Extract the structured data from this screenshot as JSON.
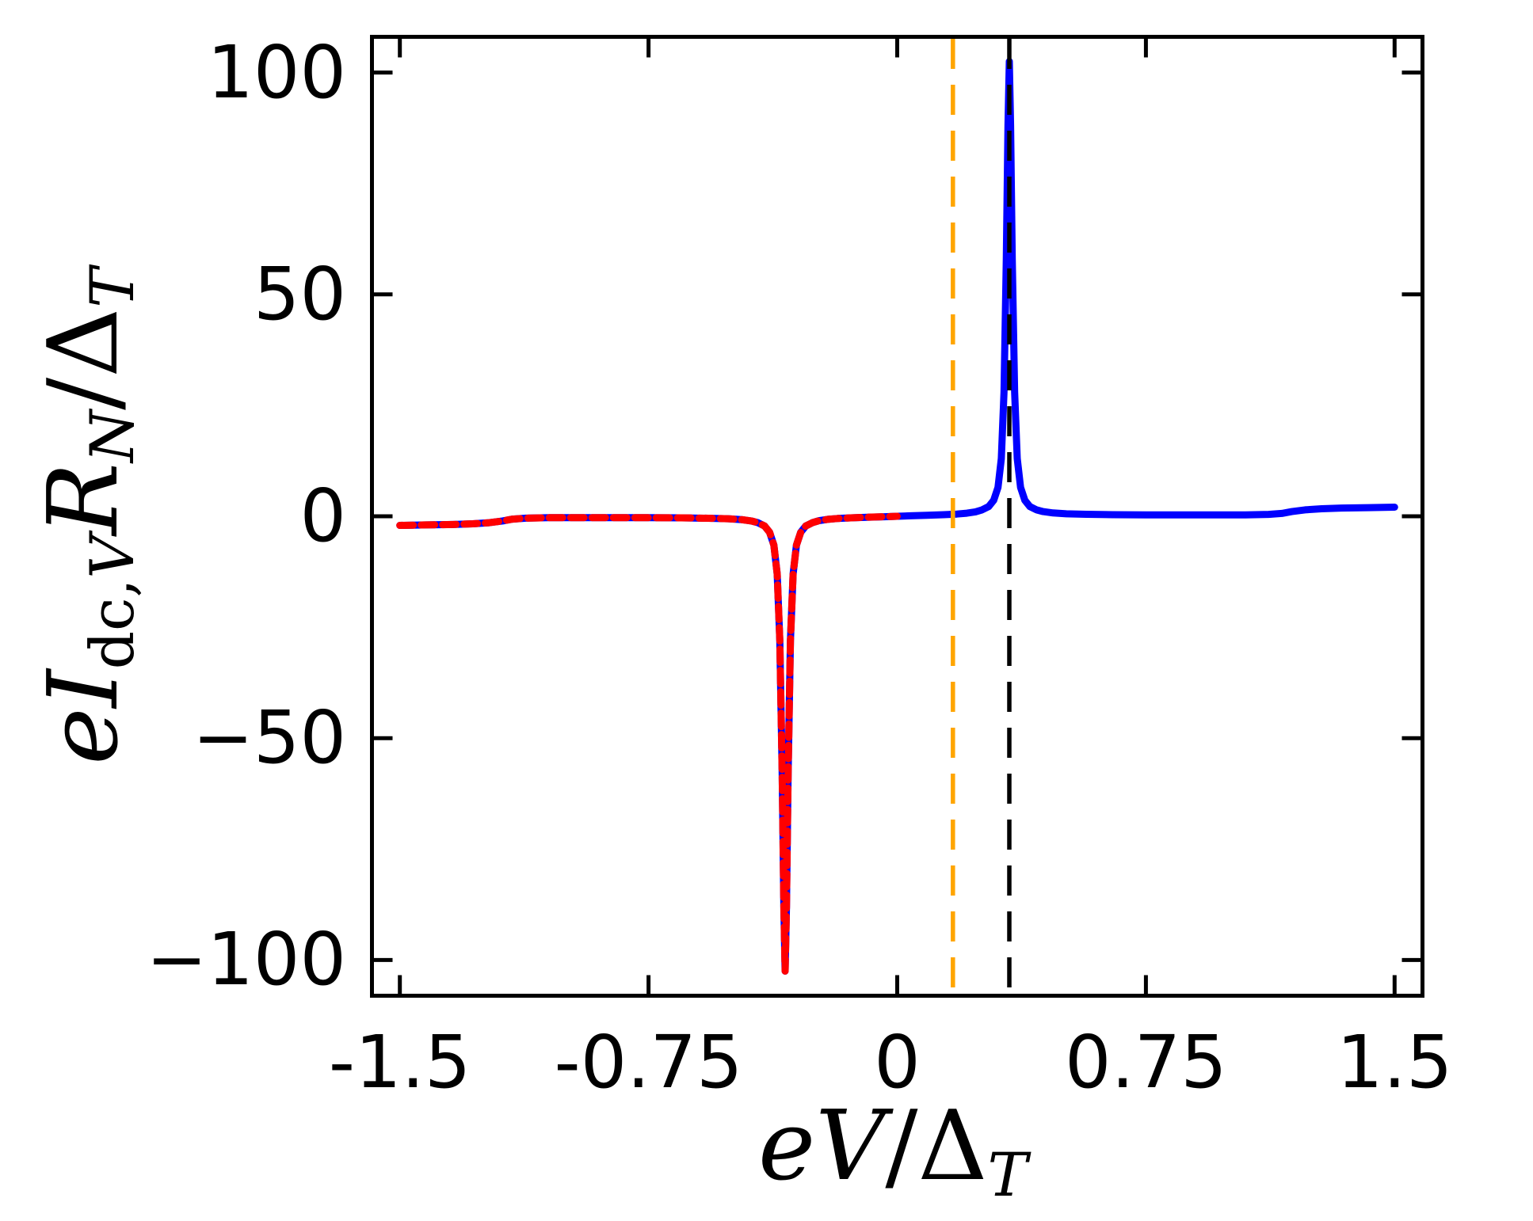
{
  "figure": {
    "background_color": "#ffffff",
    "frame_color": "#000000",
    "xlabel_plain": "eV/Δ_T",
    "ylabel_plain": "eI_dc,V R_N/Δ_T",
    "xlabel_segments": [
      {
        "text": "eV",
        "style": "it"
      },
      {
        "text": "/Δ",
        "style": "rm"
      },
      {
        "text": "T",
        "style": "subit"
      }
    ],
    "ylabel_segments": [
      {
        "text": "eI",
        "style": "it"
      },
      {
        "text": "dc,",
        "style": "sub"
      },
      {
        "text": "V",
        "style": "subit"
      },
      {
        "text": "R",
        "style": "it"
      },
      {
        "text": "N",
        "style": "subit"
      },
      {
        "text": "/Δ",
        "style": "rm"
      },
      {
        "text": "T",
        "style": "subit"
      }
    ]
  },
  "chart_data": {
    "type": "line",
    "title": "",
    "xlabel": "eV/Δ_T",
    "ylabel": "eI_dc,V R_N/Δ_T",
    "xlim": [
      -1.59,
      1.59
    ],
    "ylim": [
      -108.5,
      108.5
    ],
    "grid": false,
    "legend_position": "none",
    "x_ticks": {
      "values": [
        -1.5,
        -0.75,
        0,
        0.75,
        1.5
      ],
      "labels": [
        "-1.5",
        "-0.75",
        "0",
        "0.75",
        "1.5"
      ]
    },
    "y_ticks": {
      "values": [
        -100,
        -50,
        0,
        50,
        100
      ],
      "labels": [
        "−100",
        "−50",
        "0",
        "50",
        "100"
      ]
    },
    "series": [
      {
        "name": "blue_solid_curve",
        "color": "#0000ff",
        "line_style": "solid",
        "line_width": 9,
        "points": [
          [
            -1.5,
            -2.05
          ],
          [
            -1.42,
            -1.95
          ],
          [
            -1.34,
            -1.85
          ],
          [
            -1.28,
            -1.7
          ],
          [
            -1.23,
            -1.45
          ],
          [
            -1.19,
            -1.05
          ],
          [
            -1.16,
            -0.65
          ],
          [
            -1.12,
            -0.42
          ],
          [
            -1.05,
            -0.33
          ],
          [
            -0.95,
            -0.3
          ],
          [
            -0.85,
            -0.3
          ],
          [
            -0.75,
            -0.32
          ],
          [
            -0.65,
            -0.36
          ],
          [
            -0.57,
            -0.44
          ],
          [
            -0.51,
            -0.56
          ],
          [
            -0.47,
            -0.75
          ],
          [
            -0.44,
            -1.05
          ],
          [
            -0.42,
            -1.45
          ],
          [
            -0.4,
            -2.2
          ],
          [
            -0.385,
            -3.6
          ],
          [
            -0.372,
            -6.5
          ],
          [
            -0.362,
            -13
          ],
          [
            -0.354,
            -28
          ],
          [
            -0.347,
            -58
          ],
          [
            -0.342,
            -88
          ],
          [
            -0.338,
            -102.5
          ],
          [
            -0.334,
            -88
          ],
          [
            -0.329,
            -58
          ],
          [
            -0.322,
            -28
          ],
          [
            -0.314,
            -13
          ],
          [
            -0.304,
            -6.5
          ],
          [
            -0.291,
            -3.6
          ],
          [
            -0.276,
            -2.2
          ],
          [
            -0.256,
            -1.45
          ],
          [
            -0.236,
            -1.0
          ],
          [
            -0.21,
            -0.7
          ],
          [
            -0.18,
            -0.5
          ],
          [
            -0.14,
            -0.35
          ],
          [
            -0.09,
            -0.22
          ],
          [
            -0.04,
            -0.1
          ],
          [
            0,
            0
          ],
          [
            0.04,
            0.1
          ],
          [
            0.09,
            0.22
          ],
          [
            0.14,
            0.35
          ],
          [
            0.18,
            0.5
          ],
          [
            0.21,
            0.7
          ],
          [
            0.236,
            1.0
          ],
          [
            0.256,
            1.45
          ],
          [
            0.276,
            2.2
          ],
          [
            0.291,
            3.6
          ],
          [
            0.304,
            6.5
          ],
          [
            0.314,
            13
          ],
          [
            0.322,
            28
          ],
          [
            0.329,
            58
          ],
          [
            0.334,
            88
          ],
          [
            0.338,
            102.5
          ],
          [
            0.342,
            88
          ],
          [
            0.347,
            58
          ],
          [
            0.354,
            28
          ],
          [
            0.362,
            13
          ],
          [
            0.372,
            6.5
          ],
          [
            0.385,
            3.6
          ],
          [
            0.4,
            2.2
          ],
          [
            0.42,
            1.45
          ],
          [
            0.44,
            1.05
          ],
          [
            0.47,
            0.75
          ],
          [
            0.51,
            0.56
          ],
          [
            0.57,
            0.44
          ],
          [
            0.65,
            0.36
          ],
          [
            0.75,
            0.32
          ],
          [
            0.85,
            0.3
          ],
          [
            0.95,
            0.3
          ],
          [
            1.05,
            0.33
          ],
          [
            1.12,
            0.42
          ],
          [
            1.16,
            0.65
          ],
          [
            1.19,
            1.05
          ],
          [
            1.23,
            1.45
          ],
          [
            1.28,
            1.7
          ],
          [
            1.34,
            1.85
          ],
          [
            1.42,
            1.95
          ],
          [
            1.5,
            2.05
          ]
        ]
      },
      {
        "name": "red_dashed_curve",
        "color": "#ff0000",
        "line_style": "dashed",
        "dash_pattern": [
          17,
          10
        ],
        "line_width": 9,
        "points": [
          [
            -1.5,
            -2.05
          ],
          [
            -1.42,
            -1.95
          ],
          [
            -1.34,
            -1.85
          ],
          [
            -1.28,
            -1.7
          ],
          [
            -1.23,
            -1.45
          ],
          [
            -1.19,
            -1.05
          ],
          [
            -1.16,
            -0.65
          ],
          [
            -1.12,
            -0.42
          ],
          [
            -1.05,
            -0.33
          ],
          [
            -0.95,
            -0.3
          ],
          [
            -0.85,
            -0.3
          ],
          [
            -0.75,
            -0.32
          ],
          [
            -0.65,
            -0.36
          ],
          [
            -0.57,
            -0.44
          ],
          [
            -0.51,
            -0.56
          ],
          [
            -0.47,
            -0.75
          ],
          [
            -0.44,
            -1.05
          ],
          [
            -0.42,
            -1.45
          ],
          [
            -0.4,
            -2.2
          ],
          [
            -0.385,
            -3.6
          ],
          [
            -0.372,
            -6.5
          ],
          [
            -0.362,
            -13
          ],
          [
            -0.354,
            -28
          ],
          [
            -0.347,
            -58
          ],
          [
            -0.342,
            -88
          ],
          [
            -0.338,
            -102.5
          ],
          [
            -0.334,
            -88
          ],
          [
            -0.329,
            -58
          ],
          [
            -0.322,
            -28
          ],
          [
            -0.314,
            -13
          ],
          [
            -0.304,
            -6.5
          ],
          [
            -0.291,
            -3.6
          ],
          [
            -0.276,
            -2.2
          ],
          [
            -0.256,
            -1.45
          ],
          [
            -0.236,
            -1.0
          ],
          [
            -0.21,
            -0.7
          ],
          [
            -0.18,
            -0.5
          ],
          [
            -0.14,
            -0.35
          ],
          [
            -0.09,
            -0.22
          ],
          [
            -0.04,
            -0.1
          ],
          [
            0,
            0
          ]
        ]
      }
    ],
    "vlines": [
      {
        "name": "orange_dashed_vline",
        "x": 0.168,
        "color": "#ffa500",
        "line_style": "dashed",
        "dash_pattern": [
          38,
          20
        ],
        "line_width": 5.5
      },
      {
        "name": "black_dashed_vline",
        "x": 0.338,
        "color": "#000000",
        "line_style": "dashed",
        "dash_pattern": [
          38,
          20
        ],
        "line_width": 5.5
      }
    ],
    "annotations": {
      "negative_peak": {
        "x": -0.338,
        "y": -102.5
      },
      "positive_peak": {
        "x": 0.338,
        "y": 102.5
      }
    }
  }
}
